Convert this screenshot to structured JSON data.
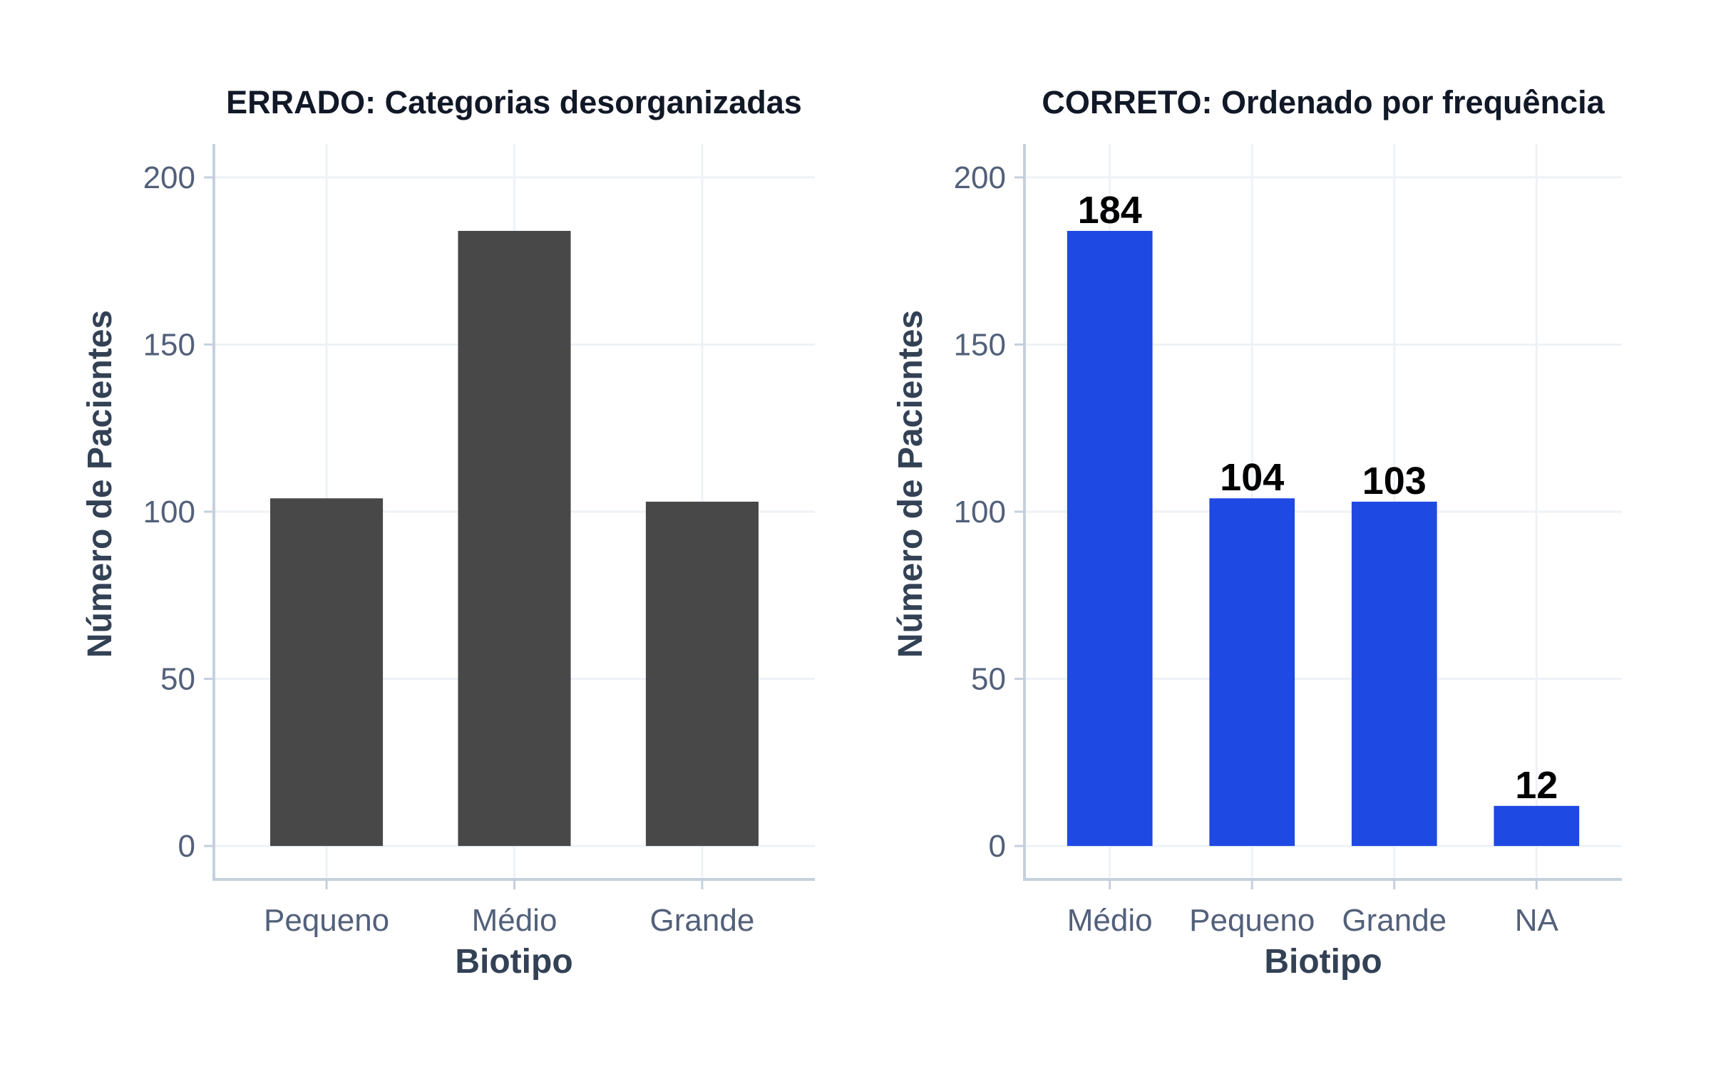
{
  "chart_data": [
    {
      "type": "bar",
      "title": "ERRADO: Categorias desorganizadas",
      "xlabel": "Biotipo",
      "ylabel": "Número de Pacientes",
      "categories": [
        "Pequeno",
        "Médio",
        "Grande"
      ],
      "values": [
        104,
        184,
        103
      ],
      "data_labels": [],
      "ylim": [
        -10,
        210
      ],
      "yticks": [
        0,
        50,
        100,
        150,
        200
      ],
      "ytick_labels": [
        "0",
        "50",
        "100",
        "150",
        "200"
      ],
      "bar_color": "#484848",
      "grid": true,
      "legend": "none"
    },
    {
      "type": "bar",
      "title": "CORRETO: Ordenado por frequência",
      "xlabel": "Biotipo",
      "ylabel": "Número de Pacientes",
      "categories": [
        "Médio",
        "Pequeno",
        "Grande",
        "NA"
      ],
      "values": [
        184,
        104,
        103,
        12
      ],
      "data_labels": [
        "184",
        "104",
        "103",
        "12"
      ],
      "ylim": [
        -10,
        210
      ],
      "yticks": [
        0,
        50,
        100,
        150,
        200
      ],
      "ytick_labels": [
        "0",
        "50",
        "100",
        "150",
        "200"
      ],
      "bar_color": "#1f49e3",
      "grid": true,
      "legend": "none"
    }
  ],
  "colors": {
    "axis_line": "#c5d0de",
    "grid": "#eef2f7",
    "tick_text": "#52607a",
    "axis_title": "#334155",
    "title": "#111827"
  }
}
